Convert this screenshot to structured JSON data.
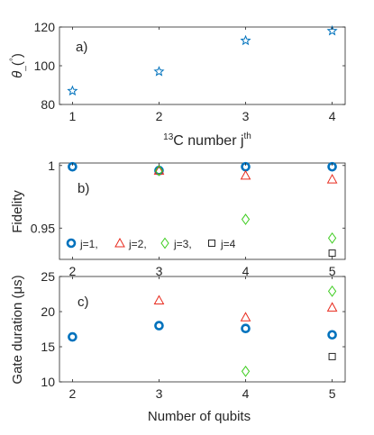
{
  "colors": {
    "j1": "#0072bd",
    "j2": "#e8291c",
    "j3": "#3ccc1e",
    "j4": "#262626"
  },
  "chart_data": [
    {
      "type": "scatter",
      "panel_label": "a)",
      "xlabel_prefix": "13",
      "xlabel_main": "C number j",
      "xlabel_sup": "th",
      "ylabel_main": "θ",
      "ylabel_sub": "_",
      "ylabel_paren": "(",
      "ylabel_deg": "°",
      "ylabel_close": ")",
      "xlim": [
        0.85,
        4.15
      ],
      "ylim": [
        80,
        120
      ],
      "xticks": [
        1,
        2,
        3,
        4
      ],
      "yticks": [
        80,
        100,
        120
      ],
      "marker": "star",
      "x": [
        1,
        2,
        3,
        4
      ],
      "y": [
        87,
        97,
        113,
        118
      ]
    },
    {
      "type": "scatter",
      "panel_label": "b)",
      "ylabel": "Fidelity",
      "xlim": [
        1.85,
        5.15
      ],
      "ylim": [
        0.925,
        1.002
      ],
      "xticks": [
        2,
        3,
        4,
        5
      ],
      "yticks": [
        0.95,
        1
      ],
      "ytick_labels": [
        "0.95",
        "1"
      ],
      "legend_placement": "bottom",
      "series": [
        {
          "name": "j=1,",
          "marker": "circle",
          "x": [
            2,
            3,
            4,
            5
          ],
          "y": [
            0.999,
            0.996,
            0.999,
            0.999
          ]
        },
        {
          "name": "j=2,",
          "marker": "triangle",
          "x": [
            3,
            4,
            5
          ],
          "y": [
            0.996,
            0.992,
            0.989
          ]
        },
        {
          "name": "j=3,",
          "marker": "diamond",
          "x": [
            3,
            4,
            5
          ],
          "y": [
            0.996,
            0.957,
            0.942
          ]
        },
        {
          "name": "j=4",
          "marker": "square",
          "x": [
            5
          ],
          "y": [
            0.93
          ]
        }
      ]
    },
    {
      "type": "scatter",
      "panel_label": "c)",
      "xlabel": "Number of qubits",
      "ylabel": "Gate duration (μs)",
      "xlim": [
        1.85,
        5.15
      ],
      "ylim": [
        10,
        25
      ],
      "xticks": [
        2,
        3,
        4,
        5
      ],
      "yticks": [
        10,
        15,
        20,
        25
      ],
      "series": [
        {
          "marker": "circle",
          "x": [
            2,
            3,
            4,
            5
          ],
          "y": [
            16.4,
            18.0,
            17.6,
            16.7
          ]
        },
        {
          "marker": "triangle",
          "x": [
            3,
            4,
            5
          ],
          "y": [
            21.6,
            19.2,
            20.6
          ]
        },
        {
          "marker": "diamond",
          "x": [
            4,
            5
          ],
          "y": [
            11.5,
            22.9
          ]
        },
        {
          "marker": "square",
          "x": [
            5
          ],
          "y": [
            13.6
          ]
        }
      ]
    }
  ]
}
